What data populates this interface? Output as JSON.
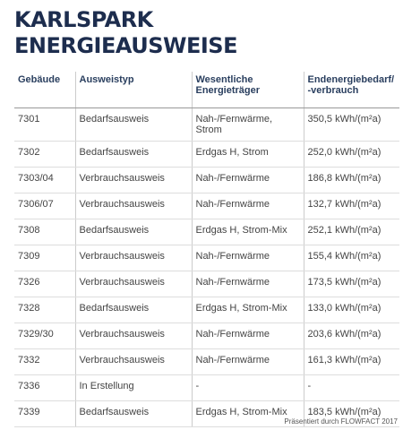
{
  "header": {
    "title": [
      "KARLSPARK",
      "ENERGIEAUSWEISE"
    ]
  },
  "table": {
    "columns": [
      [
        "Gebäude"
      ],
      [
        "Ausweistyp"
      ],
      [
        "Wesentliche",
        "Energieträger"
      ],
      [
        "Endenergiebedarf/",
        "-verbrauch"
      ]
    ],
    "rows": [
      [
        "7301",
        "Bedarfsausweis",
        "Nah-/Fernwärme, Strom",
        "350,5 kWh/(m²a)"
      ],
      [
        "7302",
        "Bedarfsausweis",
        "Erdgas H, Strom",
        "252,0 kWh/(m²a)"
      ],
      [
        "7303/04",
        "Verbrauchsausweis",
        "Nah-/Fernwärme",
        "186,8 kWh/(m²a)"
      ],
      [
        "7306/07",
        "Verbrauchsausweis",
        "Nah-/Fernwärme",
        "132,7 kWh/(m²a)"
      ],
      [
        "7308",
        "Bedarfsausweis",
        "Erdgas H, Strom-Mix",
        "252,1 kWh/(m²a)"
      ],
      [
        "7309",
        "Verbrauchsausweis",
        "Nah-/Fernwärme",
        "155,4 kWh/(m²a)"
      ],
      [
        "7326",
        "Verbrauchsausweis",
        "Nah-/Fernwärme",
        "173,5 kWh/(m²a)"
      ],
      [
        "7328",
        "Bedarfsausweis",
        "Erdgas H, Strom-Mix",
        "133,0 kWh/(m²a)"
      ],
      [
        "7329/30",
        "Verbrauchsausweis",
        "Nah-/Fernwärme",
        "203,6 kWh/(m²a)"
      ],
      [
        "7332",
        "Verbrauchsausweis",
        "Nah-/Fernwärme",
        "161,3 kWh/(m²a)"
      ],
      [
        "7336",
        "In Erstellung",
        "-",
        "-"
      ],
      [
        "7339",
        "Bedarfsausweis",
        "Erdgas H, Strom-Mix",
        "183,5 kWh/(m²a)"
      ]
    ]
  },
  "footer": "Präsentiert durch FLOWFACT 2017"
}
